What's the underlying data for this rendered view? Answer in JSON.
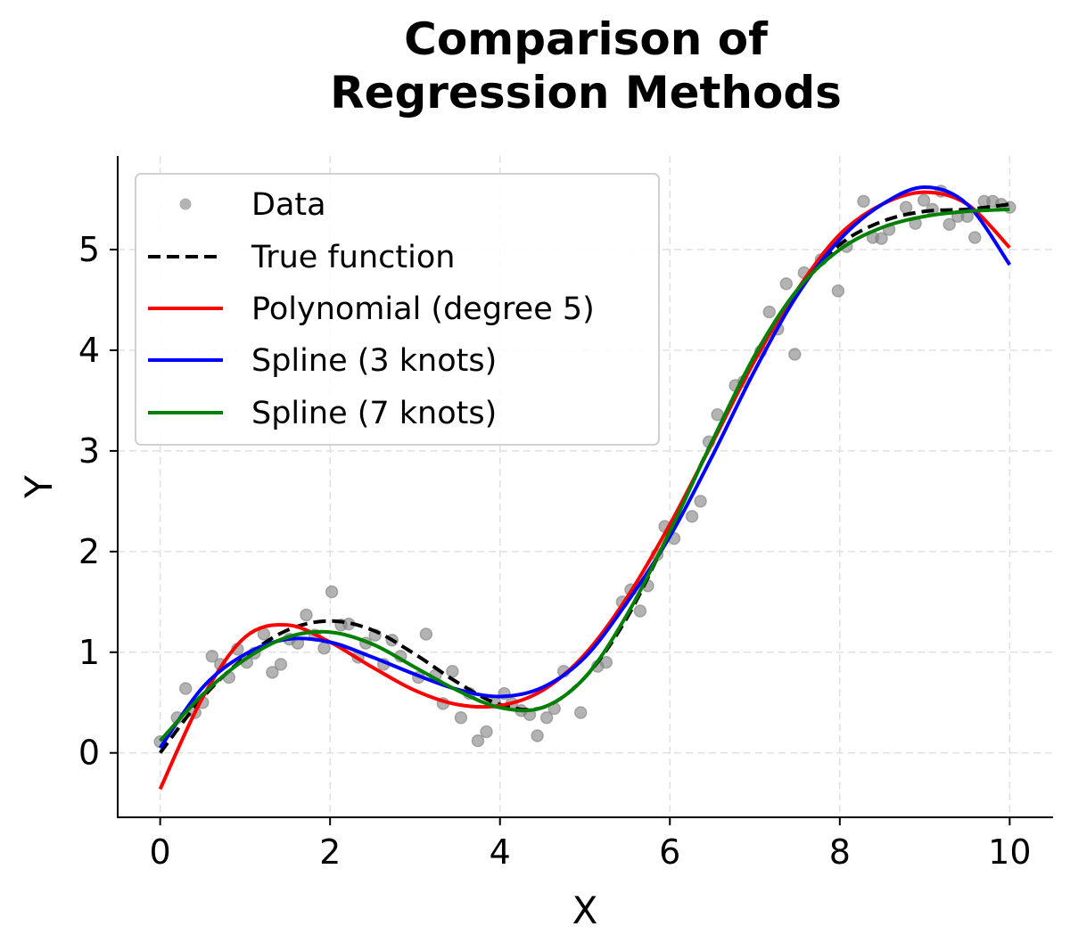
{
  "chart_data": {
    "type": "line",
    "title": [
      "Comparison of",
      "Regression Methods"
    ],
    "xlabel": "X",
    "ylabel": "Y",
    "xlim": [
      -0.5,
      10.5
    ],
    "ylim": [
      -0.64,
      5.93
    ],
    "xticks": [
      0,
      2,
      4,
      6,
      8,
      10
    ],
    "yticks": [
      0,
      1,
      2,
      3,
      4,
      5
    ],
    "grid": true,
    "legend_position": "upper-left",
    "scatter": {
      "name": "Data",
      "color": "#808080",
      "points": [
        [
          0,
          0.11
        ],
        [
          0.2,
          0.35
        ],
        [
          0.3,
          0.64
        ],
        [
          0.41,
          0.4
        ],
        [
          0.5,
          0.5
        ],
        [
          0.61,
          0.96
        ],
        [
          0.71,
          0.88
        ],
        [
          0.81,
          0.75
        ],
        [
          0.91,
          1.03
        ],
        [
          1.02,
          0.9
        ],
        [
          1.11,
          0.99
        ],
        [
          1.22,
          1.18
        ],
        [
          1.32,
          0.8
        ],
        [
          1.42,
          0.88
        ],
        [
          1.52,
          1.13
        ],
        [
          1.62,
          1.09
        ],
        [
          1.72,
          1.37
        ],
        [
          1.82,
          1.17
        ],
        [
          1.93,
          1.04
        ],
        [
          2.02,
          1.6
        ],
        [
          2.13,
          1.27
        ],
        [
          2.22,
          1.28
        ],
        [
          2.33,
          0.95
        ],
        [
          2.42,
          1.09
        ],
        [
          2.53,
          1.17
        ],
        [
          2.63,
          0.88
        ],
        [
          2.73,
          1.12
        ],
        [
          2.83,
          0.96
        ],
        [
          3.04,
          0.75
        ],
        [
          3.13,
          1.18
        ],
        [
          3.24,
          0.77
        ],
        [
          3.33,
          0.49
        ],
        [
          3.44,
          0.81
        ],
        [
          3.54,
          0.35
        ],
        [
          3.64,
          0.59
        ],
        [
          3.74,
          0.12
        ],
        [
          3.84,
          0.21
        ],
        [
          3.94,
          0.5
        ],
        [
          4.05,
          0.59
        ],
        [
          4.14,
          0.49
        ],
        [
          4.25,
          0.42
        ],
        [
          4.35,
          0.38
        ],
        [
          4.44,
          0.17
        ],
        [
          4.55,
          0.35
        ],
        [
          4.64,
          0.44
        ],
        [
          4.75,
          0.81
        ],
        [
          4.95,
          0.4
        ],
        [
          5.15,
          0.86
        ],
        [
          5.25,
          0.9
        ],
        [
          5.44,
          1.5
        ],
        [
          5.54,
          1.62
        ],
        [
          5.65,
          1.41
        ],
        [
          5.74,
          1.66
        ],
        [
          5.85,
          1.97
        ],
        [
          5.94,
          2.25
        ],
        [
          6.05,
          2.13
        ],
        [
          6.26,
          2.35
        ],
        [
          6.36,
          2.5
        ],
        [
          6.46,
          3.09
        ],
        [
          6.56,
          3.36
        ],
        [
          6.77,
          3.65
        ],
        [
          6.87,
          3.69
        ],
        [
          7.07,
          3.99
        ],
        [
          7.17,
          4.38
        ],
        [
          7.27,
          4.21
        ],
        [
          7.37,
          4.66
        ],
        [
          7.47,
          3.96
        ],
        [
          7.58,
          4.77
        ],
        [
          7.78,
          4.9
        ],
        [
          7.98,
          4.59
        ],
        [
          8.08,
          5.03
        ],
        [
          8.28,
          5.48
        ],
        [
          8.39,
          5.12
        ],
        [
          8.49,
          5.11
        ],
        [
          8.58,
          5.2
        ],
        [
          8.78,
          5.42
        ],
        [
          8.89,
          5.26
        ],
        [
          8.99,
          5.49
        ],
        [
          9.09,
          5.4
        ],
        [
          9.19,
          5.58
        ],
        [
          9.29,
          5.25
        ],
        [
          9.39,
          5.33
        ],
        [
          9.5,
          5.33
        ],
        [
          9.59,
          5.12
        ],
        [
          9.7,
          5.48
        ],
        [
          9.8,
          5.48
        ],
        [
          9.9,
          5.45
        ],
        [
          10.0,
          5.42
        ]
      ]
    },
    "x": [
      0,
      0.5,
      1,
      1.5,
      2,
      2.5,
      3,
      3.5,
      4,
      4.5,
      5,
      5.5,
      6,
      6.5,
      7,
      7.5,
      8,
      8.5,
      9,
      9.5,
      10
    ],
    "series": [
      {
        "name": "True function",
        "color": "#000000",
        "dashed": true,
        "values": [
          0.0,
          0.55,
          0.95,
          1.22,
          1.31,
          1.22,
          0.98,
          0.7,
          0.48,
          0.45,
          0.75,
          1.35,
          2.2,
          3.1,
          3.9,
          4.6,
          5.05,
          5.28,
          5.38,
          5.4,
          5.45
        ]
      },
      {
        "name": "Polynomial (degree 5)",
        "color": "#ff0000",
        "dashed": false,
        "values": [
          -0.36,
          0.55,
          1.15,
          1.27,
          1.1,
          0.85,
          0.62,
          0.48,
          0.47,
          0.62,
          0.98,
          1.55,
          2.27,
          3.08,
          3.9,
          4.6,
          5.15,
          5.45,
          5.57,
          5.45,
          5.02
        ]
      },
      {
        "name": "Spline (3 knots)",
        "color": "#0000ff",
        "dashed": false,
        "values": [
          0.05,
          0.65,
          0.98,
          1.13,
          1.1,
          0.95,
          0.78,
          0.63,
          0.56,
          0.65,
          0.95,
          1.5,
          2.15,
          2.95,
          3.8,
          4.55,
          5.1,
          5.45,
          5.62,
          5.45,
          4.85
        ]
      },
      {
        "name": "Spline (7 knots)",
        "color": "#008000",
        "dashed": false,
        "values": [
          0.12,
          0.58,
          0.93,
          1.15,
          1.2,
          1.08,
          0.85,
          0.62,
          0.45,
          0.45,
          0.75,
          1.38,
          2.2,
          3.1,
          3.95,
          4.6,
          5.0,
          5.22,
          5.33,
          5.38,
          5.4
        ]
      }
    ]
  }
}
